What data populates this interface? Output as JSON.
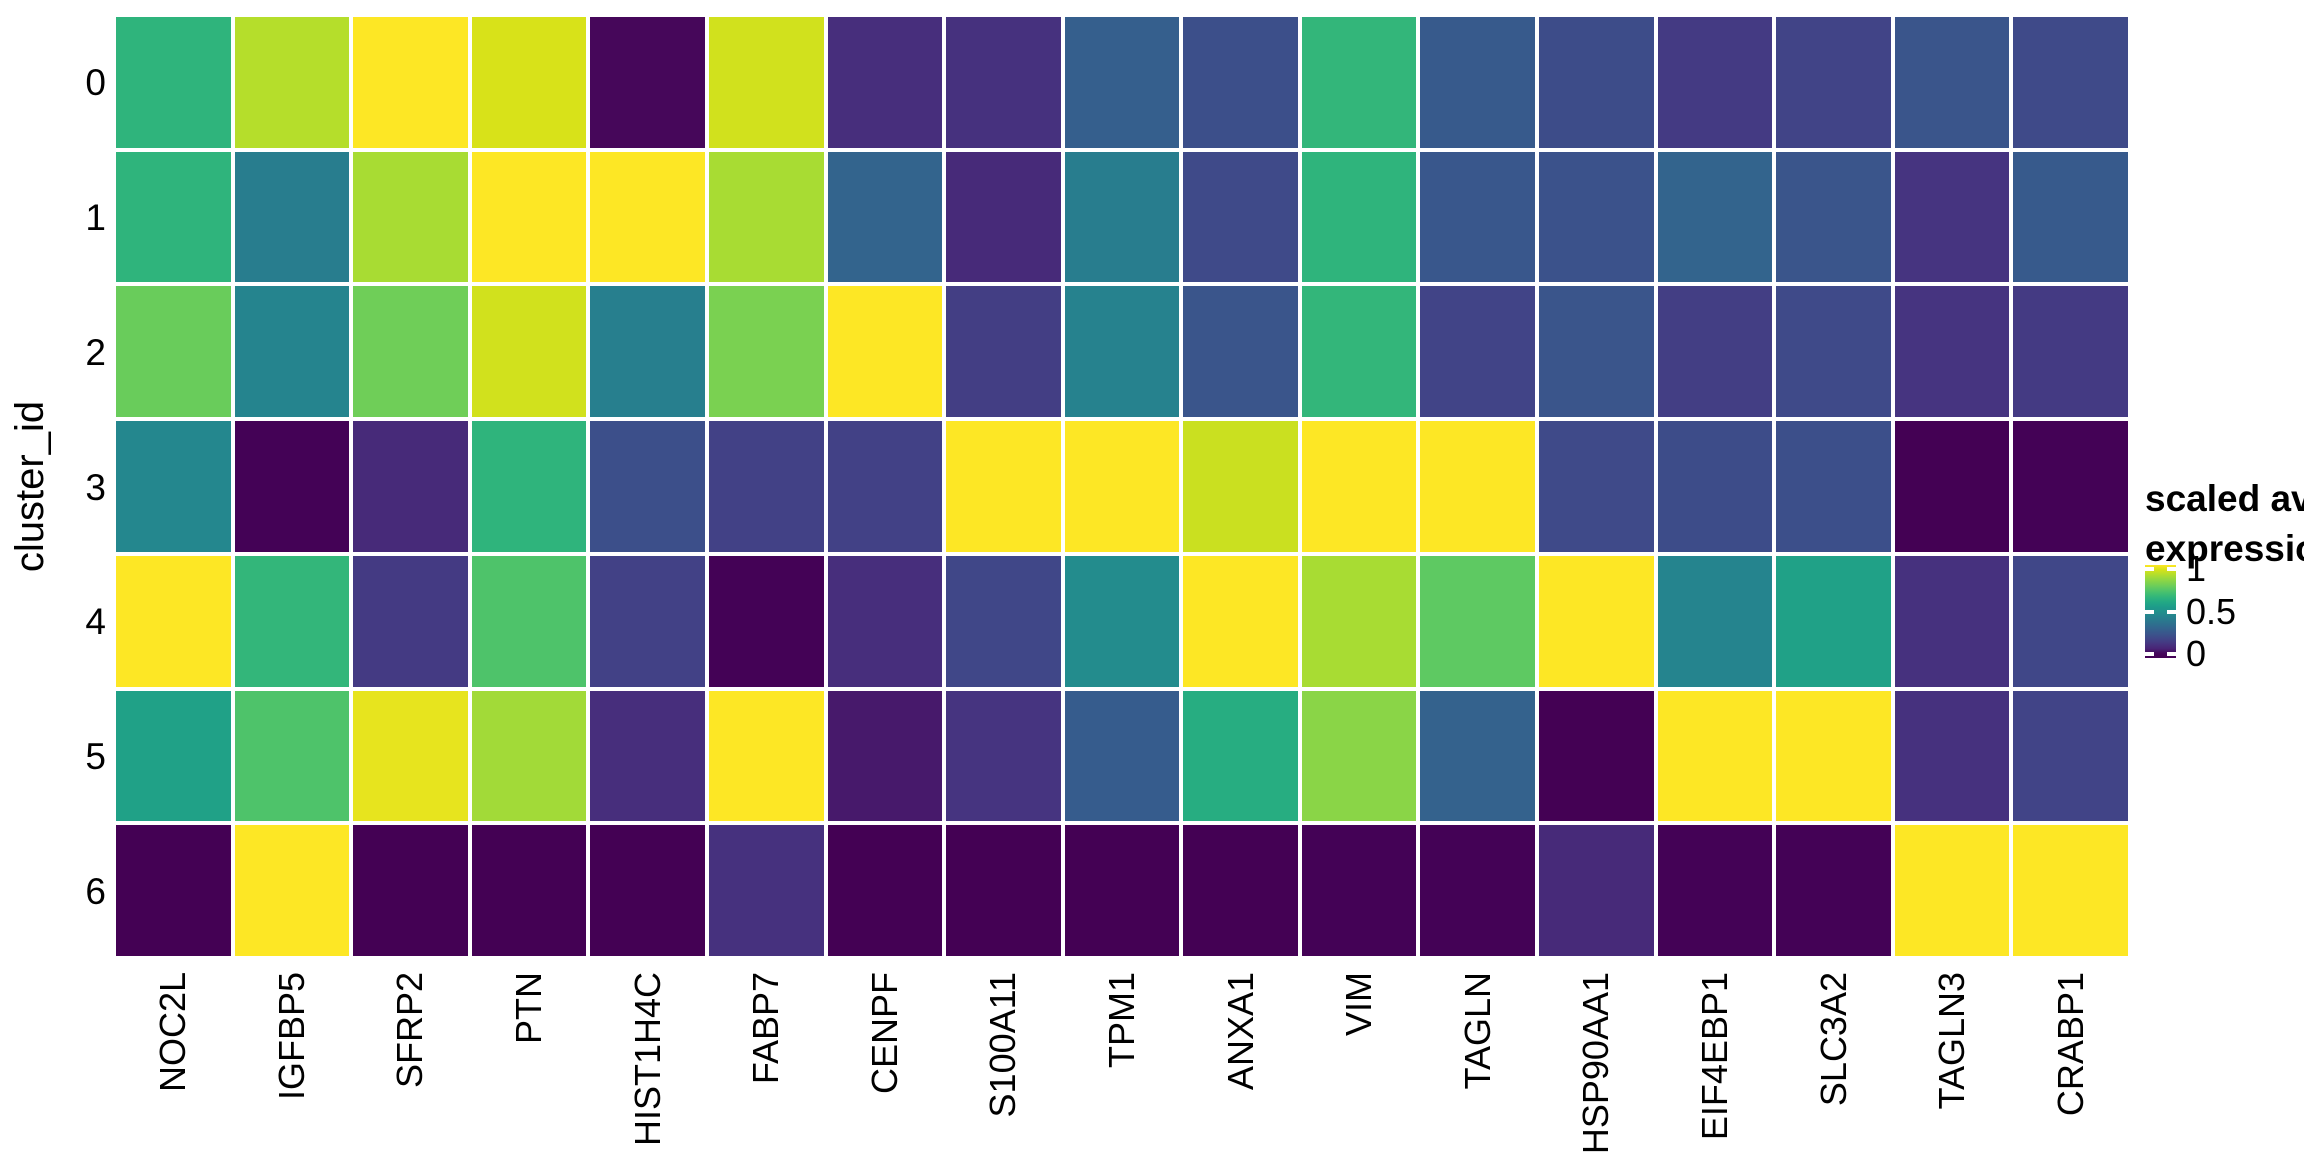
{
  "chart_data": {
    "type": "heatmap",
    "title": "",
    "xlabel": "",
    "ylabel": "cluster_id",
    "x_categories": [
      "NOC2L",
      "IGFBP5",
      "SFRP2",
      "PTN",
      "HIST1H4C",
      "FABP7",
      "CENPF",
      "S100A11",
      "TPM1",
      "ANXA1",
      "VIM",
      "TAGLN",
      "HSP90AA1",
      "EIF4EBP1",
      "SLC3A2",
      "TAGLN3",
      "CRABP1"
    ],
    "y_categories": [
      "0",
      "1",
      "2",
      "3",
      "4",
      "5",
      "6"
    ],
    "values": [
      [
        0.65,
        0.9,
        1.0,
        0.95,
        0.04,
        0.94,
        0.13,
        0.14,
        0.3,
        0.24,
        0.66,
        0.28,
        0.23,
        0.17,
        0.2,
        0.26,
        0.22
      ],
      [
        0.65,
        0.42,
        0.88,
        1.0,
        1.0,
        0.88,
        0.32,
        0.12,
        0.42,
        0.22,
        0.65,
        0.27,
        0.25,
        0.32,
        0.26,
        0.15,
        0.28
      ],
      [
        0.77,
        0.45,
        0.78,
        0.94,
        0.43,
        0.8,
        1.0,
        0.18,
        0.44,
        0.26,
        0.66,
        0.2,
        0.26,
        0.18,
        0.22,
        0.15,
        0.17
      ],
      [
        0.46,
        0.01,
        0.12,
        0.65,
        0.24,
        0.19,
        0.19,
        1.0,
        1.0,
        0.93,
        1.0,
        1.0,
        0.22,
        0.23,
        0.24,
        0.0,
        0.01
      ],
      [
        1.0,
        0.66,
        0.17,
        0.72,
        0.19,
        0.01,
        0.13,
        0.21,
        0.48,
        1.0,
        0.88,
        0.75,
        1.0,
        0.45,
        0.57,
        0.14,
        0.21
      ],
      [
        0.57,
        0.72,
        0.97,
        0.87,
        0.13,
        1.0,
        0.08,
        0.15,
        0.29,
        0.62,
        0.83,
        0.31,
        0.0,
        1.0,
        1.0,
        0.14,
        0.2
      ],
      [
        0.0,
        1.0,
        0.0,
        0.0,
        0.0,
        0.14,
        0.0,
        0.0,
        0.0,
        0.0,
        0.01,
        0.01,
        0.12,
        0.01,
        0.01,
        1.0,
        1.0
      ]
    ],
    "value_range": [
      0,
      1
    ],
    "grid": false,
    "legend": {
      "position": "right",
      "title_lines": [
        "scaled avg.",
        "expression"
      ],
      "ticks": [
        "1",
        "0.5",
        "0"
      ],
      "colormap": "viridis",
      "colormap_stops": [
        "#440154",
        "#46085c",
        "#482475",
        "#463480",
        "#414487",
        "#3b528b",
        "#355f8d",
        "#2f6c8e",
        "#2a788e",
        "#25848e",
        "#21918c",
        "#1e9c89",
        "#22a884",
        "#2fb47c",
        "#44bf70",
        "#5ec962",
        "#7ad151",
        "#95d840",
        "#b5de2b",
        "#d8e219",
        "#fde725"
      ]
    }
  },
  "colors": {
    "background": "#ffffff",
    "cell_gap": "#ffffff",
    "text": "#000000"
  }
}
